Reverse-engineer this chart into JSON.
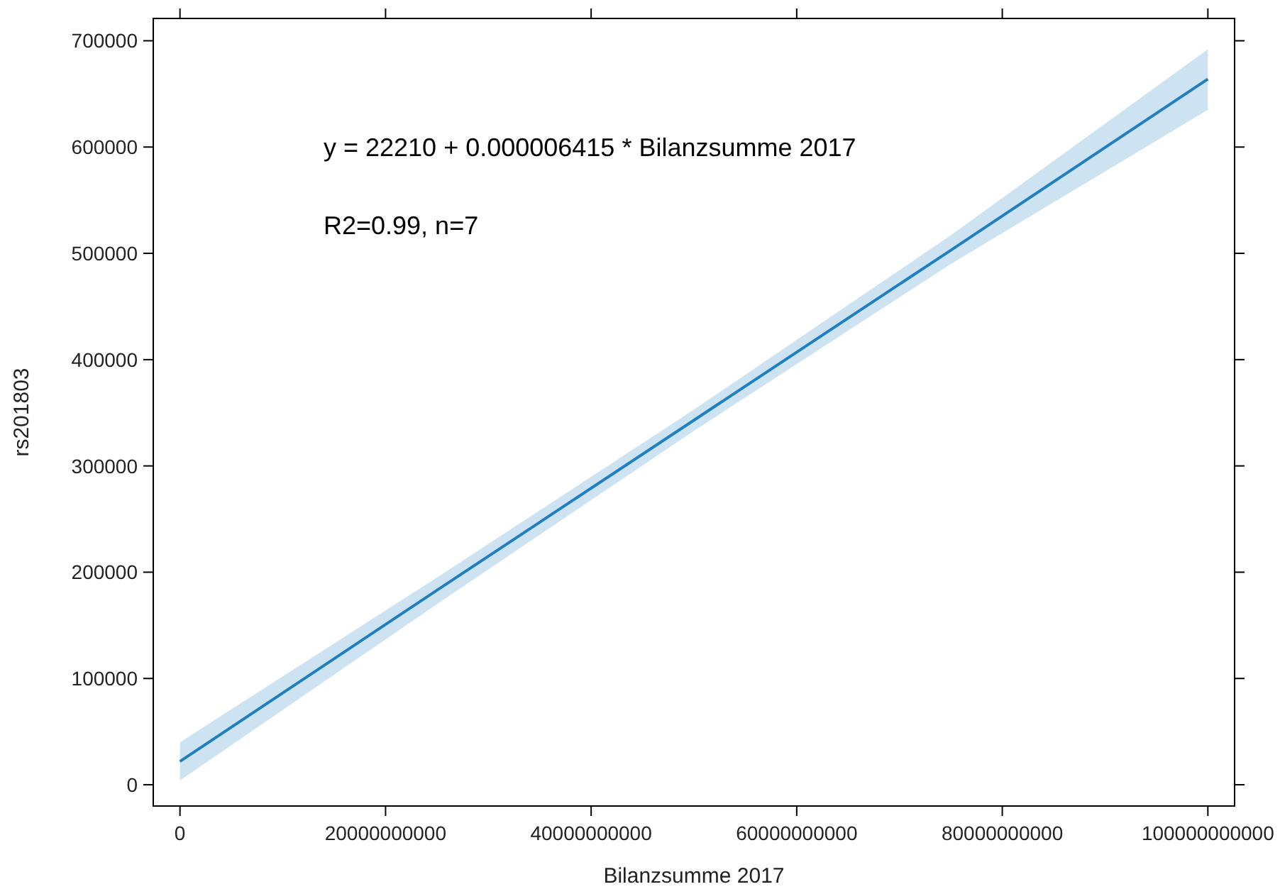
{
  "chart_data": {
    "type": "line",
    "xlabel": "Bilanzsumme 2017",
    "ylabel": "rs201803",
    "annotations": [
      "y = 22210 + 0.000006415 * Bilanzsumme 2017",
      "R2=0.99, n=7"
    ],
    "xlim": [
      -2600000000,
      102600000000
    ],
    "ylim": [
      -20000,
      721000
    ],
    "xticks": [
      0,
      20000000000,
      40000000000,
      60000000000,
      80000000000,
      100000000000
    ],
    "yticks": [
      0,
      100000,
      200000,
      300000,
      400000,
      500000,
      600000,
      700000
    ],
    "grid": false,
    "marker": "none",
    "line_style": "solid",
    "series": [
      {
        "color": "#1f7fc0",
        "x": [
          0,
          25000000000,
          50000000000,
          75000000000,
          100000000000
        ],
        "values": [
          22000,
          183000,
          343000,
          503000,
          664000
        ],
        "lower": [
          4000,
          170000,
          333000,
          490000,
          635000
        ],
        "upper": [
          40000,
          195000,
          353000,
          517000,
          692000
        ]
      }
    ]
  }
}
